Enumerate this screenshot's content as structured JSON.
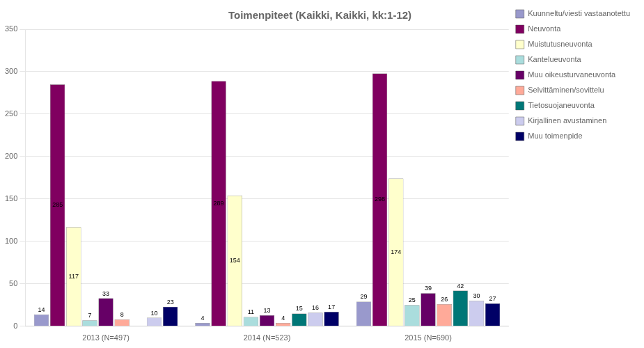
{
  "chart_data": {
    "type": "bar",
    "title": "Toimenpiteet (Kaikki, Kaikki, kk:1-12)",
    "categories": [
      "2013 (N=497)",
      "2014 (N=523)",
      "2015 (N=690)"
    ],
    "series": [
      {
        "name": "Kuunneltu/viesti vastaanotettu",
        "color": "#9999CC",
        "values": [
          14,
          4,
          29
        ]
      },
      {
        "name": "Neuvonta",
        "color": "#800060",
        "values": [
          285,
          289,
          298
        ]
      },
      {
        "name": "Muistutusneuvonta",
        "color": "#FFFFCC",
        "values": [
          117,
          154,
          174
        ]
      },
      {
        "name": "Kantelueuvonta",
        "color": "#AADDDD",
        "values": [
          7,
          11,
          25
        ]
      },
      {
        "name": "Muu oikeusturvaneuvonta",
        "color": "#660066",
        "values": [
          33,
          13,
          39
        ]
      },
      {
        "name": "Selvittäminen/sovittelu",
        "color": "#FFAA99",
        "values": [
          8,
          4,
          26
        ]
      },
      {
        "name": "Tietosuojaneuvonta",
        "color": "#007777",
        "values": [
          0,
          15,
          42
        ]
      },
      {
        "name": "Kirjallinen avustaminen",
        "color": "#CCCCEE",
        "values": [
          10,
          16,
          30
        ]
      },
      {
        "name": "Muu toimenpide",
        "color": "#000066",
        "values": [
          23,
          17,
          27
        ]
      }
    ],
    "ylim": [
      0,
      350
    ],
    "yticks": [
      0,
      50,
      100,
      150,
      200,
      250,
      300,
      350
    ],
    "grid": true,
    "legend": "right",
    "data_labels": true
  }
}
